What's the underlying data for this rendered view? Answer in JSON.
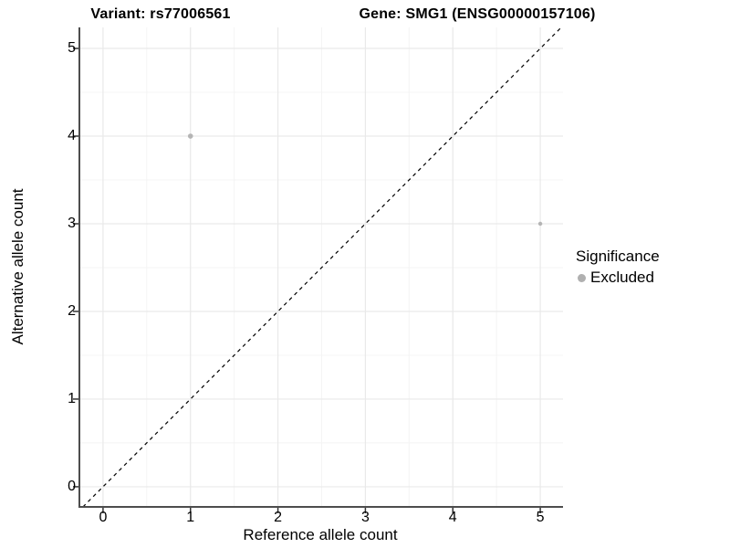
{
  "titles": {
    "variant": "Variant: rs77006561",
    "gene": "Gene: SMG1 (ENSG00000157106)"
  },
  "chart_data": {
    "type": "scatter",
    "xlabel": "Reference allele count",
    "ylabel": "Alternative allele count",
    "xlim": [
      -0.26,
      5.26
    ],
    "ylim": [
      -0.23,
      5.24
    ],
    "x_ticks": [
      0,
      1,
      2,
      3,
      4,
      5
    ],
    "y_ticks": [
      0,
      1,
      2,
      3,
      4,
      5
    ],
    "minor_grid_step": 0.5,
    "grid": true,
    "points": [
      {
        "x": 1,
        "y": 4,
        "r": 2.8
      },
      {
        "x": 5,
        "y": 3,
        "r": 2.2
      }
    ],
    "point_color": "#b5b5b5",
    "identity_line": {
      "slope": 1,
      "intercept": 0,
      "style": "dashed",
      "color": "#000000"
    },
    "legend": {
      "position": "right",
      "title": "Significance",
      "items": [
        {
          "label": "Excluded",
          "color": "#b0b0b0"
        }
      ]
    }
  },
  "colors": {
    "background": "#ffffff",
    "axis_line": "#4d4d4d",
    "tick_mark": "#333333",
    "grid_major": "#e9e9e9",
    "grid_minor": "#f4f4f4",
    "text": "#000000"
  }
}
